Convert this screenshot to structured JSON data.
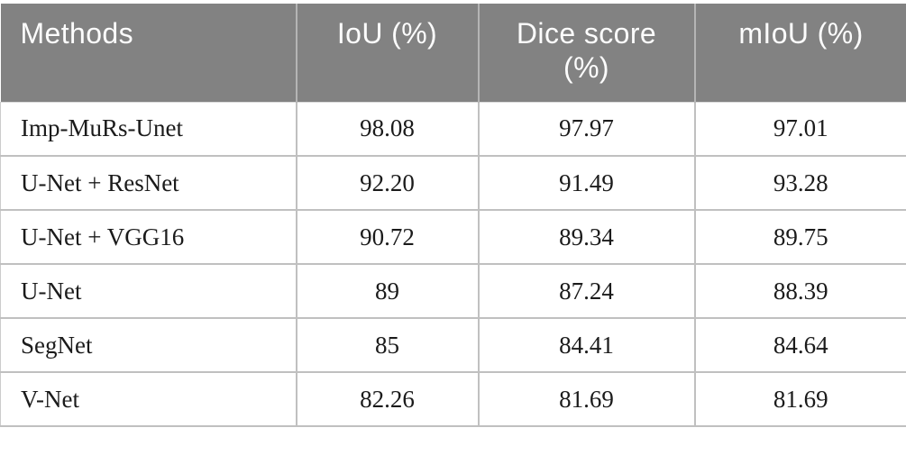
{
  "table": {
    "header": {
      "background_color": "#828282",
      "text_color": "#fcfcfc",
      "divider_color": "#b5b5b5",
      "columns": [
        {
          "id": "methods",
          "label": "Methods",
          "line1": "Methods",
          "line2": ""
        },
        {
          "id": "iou",
          "label": "IoU (%)",
          "line1": "IoU (%)",
          "line2": ""
        },
        {
          "id": "dice",
          "label": "Dice score (%)",
          "line1": "Dice score",
          "line2": "(%)"
        },
        {
          "id": "miou",
          "label": "mIoU (%)",
          "line1": "mIoU (%)",
          "line2": ""
        }
      ]
    },
    "grid_color": "#c0c0c0",
    "body_text_color": "#1b1b1b",
    "rows": [
      {
        "method": "Imp-MuRs-Unet",
        "iou": "98.08",
        "dice": "97.97",
        "miou": "97.01"
      },
      {
        "method": "U-Net + ResNet",
        "iou": "92.20",
        "dice": "91.49",
        "miou": "93.28"
      },
      {
        "method": "U-Net + VGG16",
        "iou": "90.72",
        "dice": "89.34",
        "miou": "89.75"
      },
      {
        "method": "U-Net",
        "iou": "89",
        "dice": "87.24",
        "miou": "88.39"
      },
      {
        "method": "SegNet",
        "iou": "85",
        "dice": "84.41",
        "miou": "84.64"
      },
      {
        "method": "V-Net",
        "iou": "82.26",
        "dice": "81.69",
        "miou": "81.69"
      }
    ]
  },
  "chart_data": {
    "type": "table",
    "title": "",
    "columns": [
      "Methods",
      "IoU (%)",
      "Dice score (%)",
      "mIoU (%)"
    ],
    "categories": [
      "Imp-MuRs-Unet",
      "U-Net + ResNet",
      "U-Net + VGG16",
      "U-Net",
      "SegNet",
      "V-Net"
    ],
    "series": [
      {
        "name": "IoU (%)",
        "values": [
          98.08,
          92.2,
          90.72,
          89,
          85,
          82.26
        ]
      },
      {
        "name": "Dice score (%)",
        "values": [
          97.97,
          91.49,
          89.34,
          87.24,
          84.41,
          81.69
        ]
      },
      {
        "name": "mIoU (%)",
        "values": [
          97.01,
          93.28,
          89.75,
          88.39,
          84.64,
          81.69
        ]
      }
    ]
  }
}
